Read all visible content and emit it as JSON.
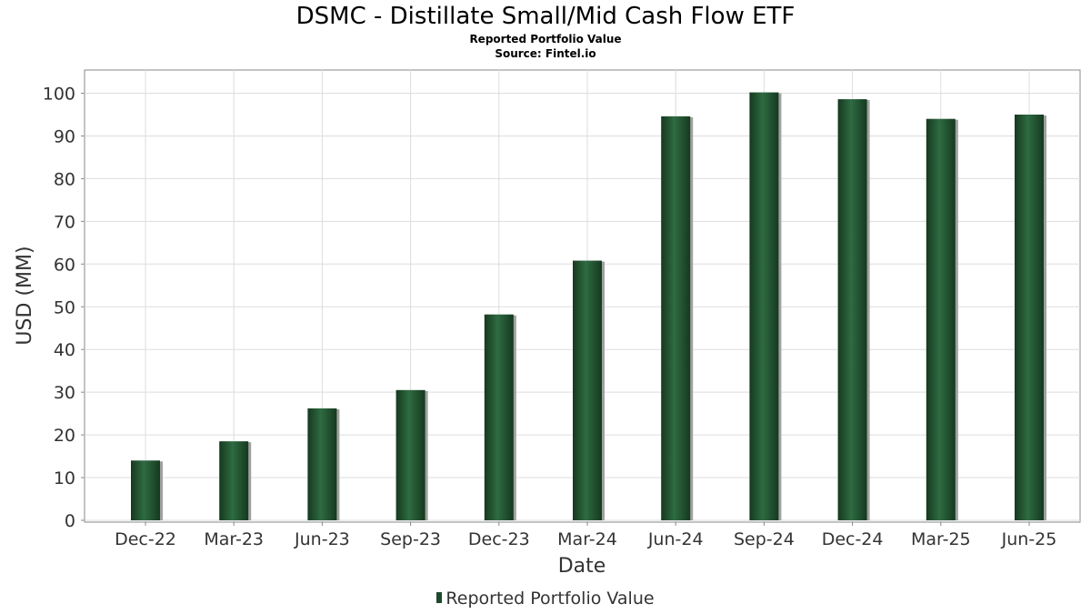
{
  "title": "DSMC - Distillate Small/Mid Cash Flow ETF",
  "subtitle_1": "Reported Portfolio Value",
  "subtitle_2": "Source: Fintel.io",
  "colors": {
    "bar": "#1e4a2c",
    "bar_highlight": "#2e6b42",
    "shadow": "#a0a0a0",
    "grid": "#dddddd"
  },
  "chart_data": {
    "type": "bar",
    "title": "DSMC - Distillate Small/Mid Cash Flow ETF",
    "xlabel": "Date",
    "ylabel": "USD (MM)",
    "ylim": [
      0,
      105
    ],
    "yticks": [
      0,
      10,
      20,
      30,
      40,
      50,
      60,
      70,
      80,
      90,
      100
    ],
    "grid": true,
    "legend_position": "bottom-center",
    "categories": [
      "Dec-22",
      "Mar-23",
      "Jun-23",
      "Sep-23",
      "Dec-23",
      "Mar-24",
      "Jun-24",
      "Sep-24",
      "Dec-24",
      "Mar-25",
      "Jun-25"
    ],
    "series": [
      {
        "name": "Reported Portfolio Value",
        "values": [
          14.0,
          18.5,
          26.2,
          30.5,
          48.2,
          60.8,
          94.6,
          100.2,
          98.6,
          94.0,
          95.0
        ]
      }
    ]
  }
}
